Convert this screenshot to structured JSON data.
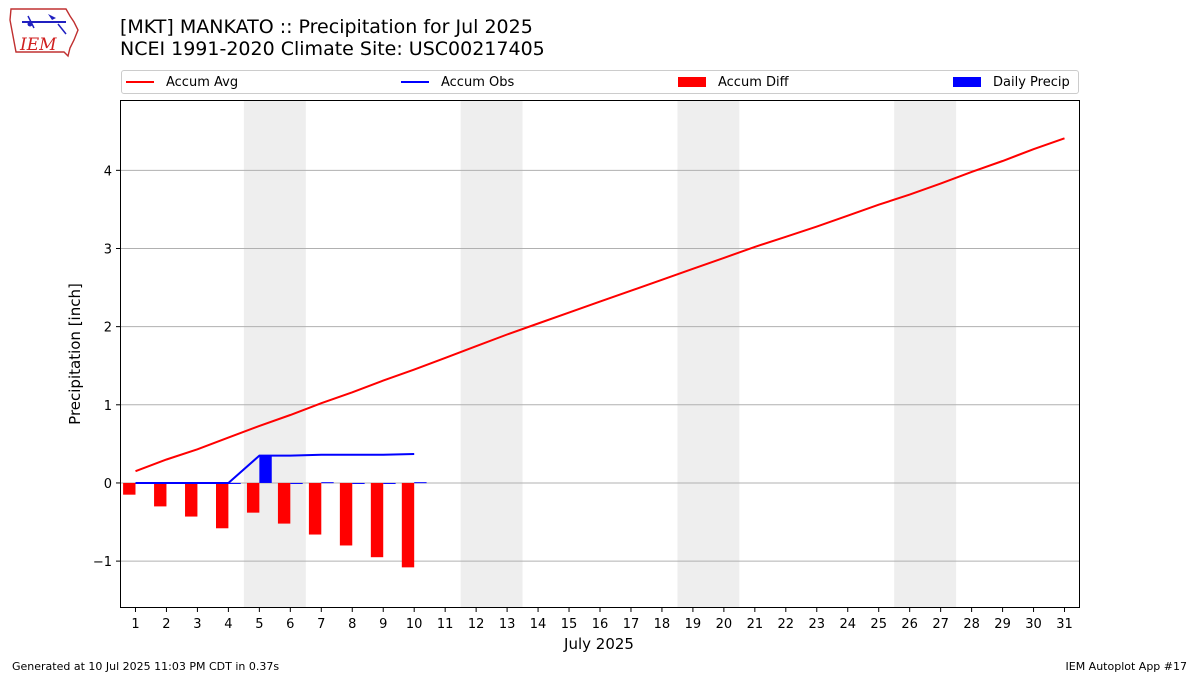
{
  "header": {
    "title_line1": "[MKT] MANKATO :: Precipitation for Jul 2025",
    "title_line2": "NCEI 1991-2020 Climate Site: USC00217405"
  },
  "logo": {
    "text": "IEM"
  },
  "footer": {
    "left": "Generated at 10 Jul 2025 11:03 PM CDT in 0.37s",
    "right": "IEM Autoplot App #17"
  },
  "colors": {
    "avg": "#ff0000",
    "obs": "#0000ff",
    "diff": "#ff0000",
    "daily": "#0000ff",
    "weekend": "#eeeeee",
    "grid": "#b0b0b0"
  },
  "legend": [
    {
      "label": "Accum Avg",
      "kind": "line",
      "color": "#ff0000"
    },
    {
      "label": "Accum Obs",
      "kind": "line",
      "color": "#0000ff"
    },
    {
      "label": "Accum Diff",
      "kind": "patch",
      "color": "#ff0000"
    },
    {
      "label": "Daily Precip",
      "kind": "patch",
      "color": "#0000ff"
    }
  ],
  "chart_data": {
    "type": "bar",
    "title": "[MKT] MANKATO :: Precipitation for Jul 2025",
    "subtitle": "NCEI 1991-2020 Climate Site: USC00217405",
    "xlabel": "July 2025",
    "ylabel": "Precipitation [inch]",
    "xlim": [
      0.5,
      31.5
    ],
    "ylim": [
      -1.6,
      4.9
    ],
    "yticks": [
      -1,
      0,
      1,
      2,
      3,
      4
    ],
    "ytick_labels": [
      "−1",
      "0",
      "1",
      "2",
      "3",
      "4"
    ],
    "grid": true,
    "days": [
      "1",
      "2",
      "3",
      "4",
      "5",
      "6",
      "7",
      "8",
      "9",
      "10",
      "11",
      "12",
      "13",
      "14",
      "15",
      "16",
      "17",
      "18",
      "19",
      "20",
      "21",
      "22",
      "23",
      "24",
      "25",
      "26",
      "27",
      "28",
      "29",
      "30",
      "31"
    ],
    "weekend_spans": [
      [
        4.5,
        6.5
      ],
      [
        11.5,
        13.5
      ],
      [
        18.5,
        20.5
      ],
      [
        25.5,
        27.5
      ]
    ],
    "series": [
      {
        "name": "Accum Avg",
        "type": "line",
        "values": [
          0.15,
          0.3,
          0.43,
          0.58,
          0.73,
          0.87,
          1.02,
          1.16,
          1.31,
          1.45,
          1.6,
          1.75,
          1.9,
          2.04,
          2.18,
          2.32,
          2.46,
          2.6,
          2.74,
          2.88,
          3.02,
          3.15,
          3.28,
          3.42,
          3.56,
          3.69,
          3.83,
          3.98,
          4.12,
          4.27,
          4.41
        ]
      },
      {
        "name": "Accum Obs",
        "type": "line",
        "values": [
          0.0,
          0.0,
          0.0,
          0.0,
          0.35,
          0.35,
          0.36,
          0.36,
          0.36,
          0.37
        ]
      },
      {
        "name": "Accum Diff",
        "type": "bar",
        "values": [
          -0.15,
          -0.3,
          -0.43,
          -0.58,
          -0.38,
          -0.52,
          -0.66,
          -0.8,
          -0.95,
          -1.08
        ]
      },
      {
        "name": "Daily Precip",
        "type": "bar",
        "values": [
          0.0,
          0.0,
          0.0,
          0.0,
          0.35,
          0.0,
          0.01,
          0.0,
          0.0,
          0.01
        ]
      }
    ]
  }
}
